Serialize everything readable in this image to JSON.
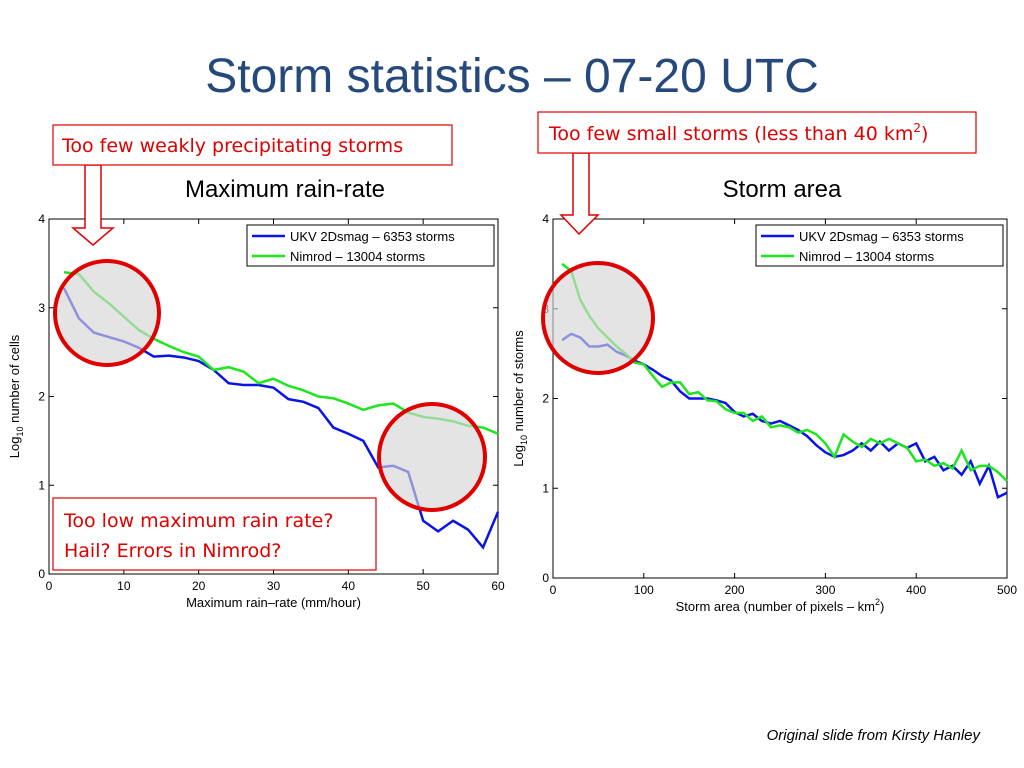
{
  "title": "Storm statistics – 07-20 UTC",
  "annotations": [
    [
      "Too few weakly precipitating storms"
    ],
    [
      "Too few small storms (less than 40 km",
      "2",
      ")"
    ],
    [
      "Too low maximum rain rate?",
      "Hail? Errors in Nimrod?"
    ]
  ],
  "footer": "Original slide from Kirsty Hanley",
  "chart_data": [
    {
      "type": "line",
      "title": "Maximum rain-rate",
      "xlabel": [
        "Maximum rain–rate (mm/hour)"
      ],
      "ylabel": [
        "Log",
        "10",
        " number of cells"
      ],
      "xlim": [
        0,
        60
      ],
      "ylim": [
        0,
        4
      ],
      "xticks": [
        0,
        10,
        20,
        30,
        40,
        50,
        60
      ],
      "yticks": [
        0,
        1,
        2,
        3,
        4
      ],
      "legend": "upper right",
      "x": [
        2,
        4,
        6,
        8,
        10,
        12,
        14,
        16,
        18,
        20,
        22,
        24,
        26,
        28,
        30,
        32,
        34,
        36,
        38,
        40,
        42,
        44,
        46,
        48,
        50,
        52,
        54,
        56,
        58,
        60
      ],
      "series": [
        {
          "name": "UKV 2Dsmag – 6353 storms",
          "color": "#0a14e6",
          "values": [
            3.22,
            2.88,
            2.72,
            2.67,
            2.62,
            2.55,
            2.45,
            2.46,
            2.44,
            2.4,
            2.3,
            2.15,
            2.13,
            2.13,
            2.1,
            1.97,
            1.94,
            1.87,
            1.65,
            1.58,
            1.5,
            1.2,
            1.22,
            1.15,
            0.6,
            0.48,
            0.6,
            0.5,
            0.3,
            0.7
          ]
        },
        {
          "name": "Nimrod – 13004 storms",
          "color": "#1ee61e",
          "values": [
            3.4,
            3.38,
            3.18,
            3.05,
            2.9,
            2.75,
            2.65,
            2.57,
            2.5,
            2.45,
            2.3,
            2.33,
            2.28,
            2.15,
            2.2,
            2.12,
            2.07,
            2.0,
            1.98,
            1.92,
            1.85,
            1.9,
            1.92,
            1.82,
            1.77,
            1.75,
            1.72,
            1.67,
            1.65,
            1.58
          ]
        }
      ]
    },
    {
      "type": "line",
      "title": "Storm area",
      "xlabel": [
        "Storm area (number of pixels – km",
        "2",
        ")"
      ],
      "ylabel": [
        "Log",
        "10",
        " number of storms"
      ],
      "xlim": [
        0,
        500
      ],
      "ylim": [
        0,
        4
      ],
      "xticks": [
        0,
        100,
        200,
        300,
        400,
        500
      ],
      "yticks": [
        0,
        1,
        2,
        3,
        4
      ],
      "legend": "upper right",
      "x": [
        10,
        20,
        30,
        40,
        50,
        60,
        70,
        80,
        90,
        100,
        110,
        120,
        130,
        140,
        150,
        160,
        170,
        180,
        190,
        200,
        210,
        220,
        230,
        240,
        250,
        260,
        270,
        280,
        290,
        300,
        310,
        320,
        330,
        340,
        350,
        360,
        370,
        380,
        390,
        400,
        410,
        420,
        430,
        440,
        450,
        460,
        470,
        480,
        490,
        500
      ],
      "series": [
        {
          "name": "UKV 2Dsmag – 6353 storms",
          "color": "#0a14e6",
          "values": [
            2.65,
            2.72,
            2.68,
            2.58,
            2.58,
            2.6,
            2.52,
            2.48,
            2.42,
            2.38,
            2.32,
            2.25,
            2.2,
            2.08,
            2.0,
            2.0,
            2.0,
            1.98,
            1.95,
            1.85,
            1.8,
            1.83,
            1.75,
            1.72,
            1.75,
            1.7,
            1.65,
            1.58,
            1.48,
            1.4,
            1.35,
            1.37,
            1.42,
            1.5,
            1.42,
            1.52,
            1.42,
            1.5,
            1.45,
            1.5,
            1.3,
            1.35,
            1.2,
            1.25,
            1.15,
            1.3,
            1.05,
            1.25,
            0.9,
            0.95
          ]
        },
        {
          "name": "Nimrod – 13004 storms",
          "color": "#1ee61e",
          "values": [
            3.5,
            3.42,
            3.1,
            2.92,
            2.78,
            2.68,
            2.58,
            2.5,
            2.4,
            2.38,
            2.25,
            2.13,
            2.18,
            2.18,
            2.05,
            2.07,
            1.98,
            1.97,
            1.88,
            1.84,
            1.84,
            1.75,
            1.8,
            1.68,
            1.7,
            1.68,
            1.62,
            1.65,
            1.6,
            1.5,
            1.35,
            1.6,
            1.52,
            1.46,
            1.55,
            1.5,
            1.55,
            1.5,
            1.45,
            1.3,
            1.32,
            1.25,
            1.28,
            1.22,
            1.42,
            1.2,
            1.25,
            1.25,
            1.18,
            1.08
          ]
        }
      ]
    }
  ]
}
